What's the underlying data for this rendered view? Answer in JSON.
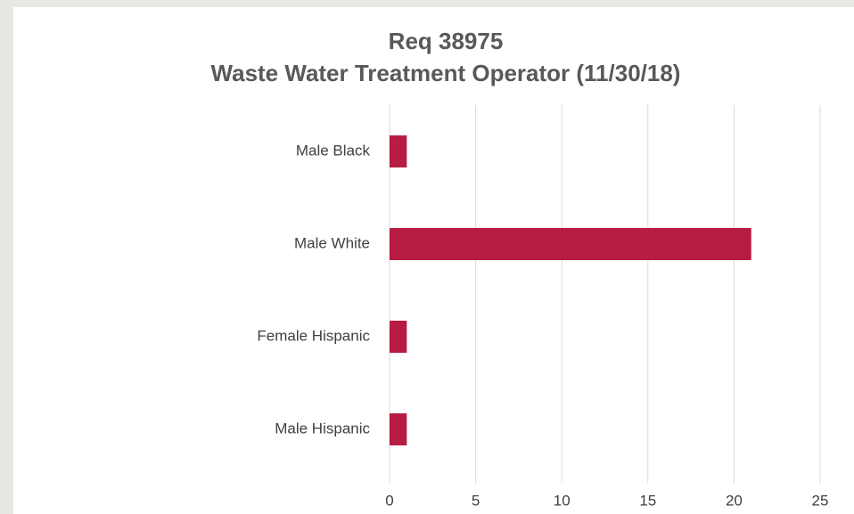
{
  "chart_data": {
    "type": "bar",
    "orientation": "horizontal",
    "title": [
      "Req 38975",
      "Waste Water Treatment Operator (11/30/18)"
    ],
    "categories": [
      "Male Black",
      "Male White",
      "Female Hispanic",
      "Male Hispanic"
    ],
    "values": [
      1,
      21,
      1,
      1
    ],
    "color": "#b71c42",
    "xlim": [
      0,
      25
    ],
    "xticks": [
      0,
      5,
      10,
      15,
      20,
      25
    ],
    "grid": true
  }
}
